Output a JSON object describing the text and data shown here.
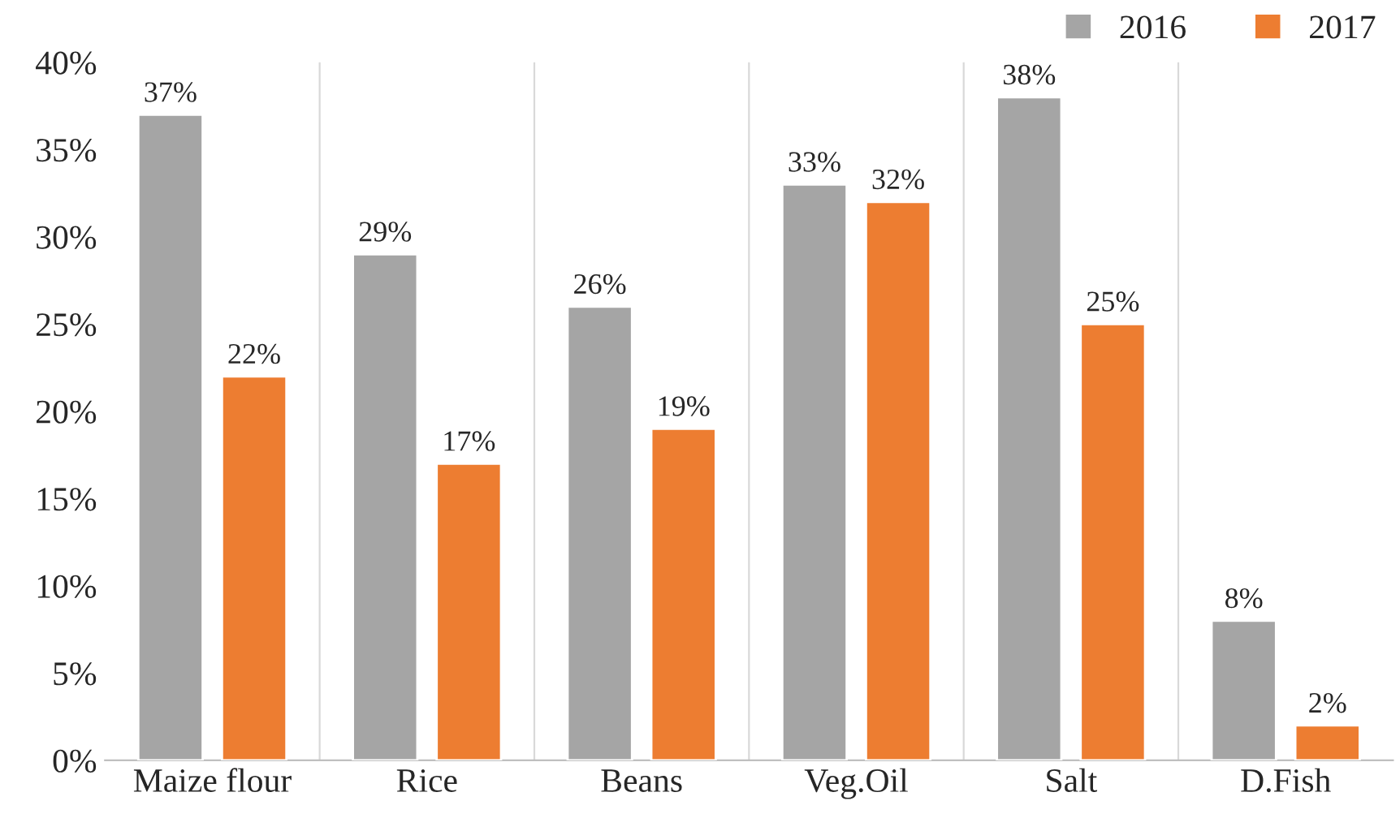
{
  "chart_data": {
    "type": "bar",
    "categories": [
      "Maize flour",
      "Rice",
      "Beans",
      "Veg.Oil",
      "Salt",
      "D.Fish"
    ],
    "series": [
      {
        "name": "2016",
        "color": "#a5a5a5",
        "values": [
          37,
          29,
          26,
          33,
          38,
          8
        ],
        "value_labels": [
          "37%",
          "29%",
          "26%",
          "33%",
          "38%",
          "8%"
        ]
      },
      {
        "name": "2017",
        "color": "#ed7d31",
        "values": [
          22,
          17,
          19,
          32,
          25,
          2
        ],
        "value_labels": [
          "22%",
          "17%",
          "19%",
          "32%",
          "25%",
          "2%"
        ]
      }
    ],
    "ylim": [
      0,
      40
    ],
    "yticks": [
      {
        "value": 0,
        "label": "0%"
      },
      {
        "value": 5,
        "label": "5%"
      },
      {
        "value": 10,
        "label": "10%"
      },
      {
        "value": 15,
        "label": "15%"
      },
      {
        "value": 20,
        "label": "20%"
      },
      {
        "value": 25,
        "label": "25%"
      },
      {
        "value": 30,
        "label": "30%"
      },
      {
        "value": 35,
        "label": "35%"
      },
      {
        "value": 40,
        "label": "40%"
      }
    ],
    "legend": "top right"
  }
}
